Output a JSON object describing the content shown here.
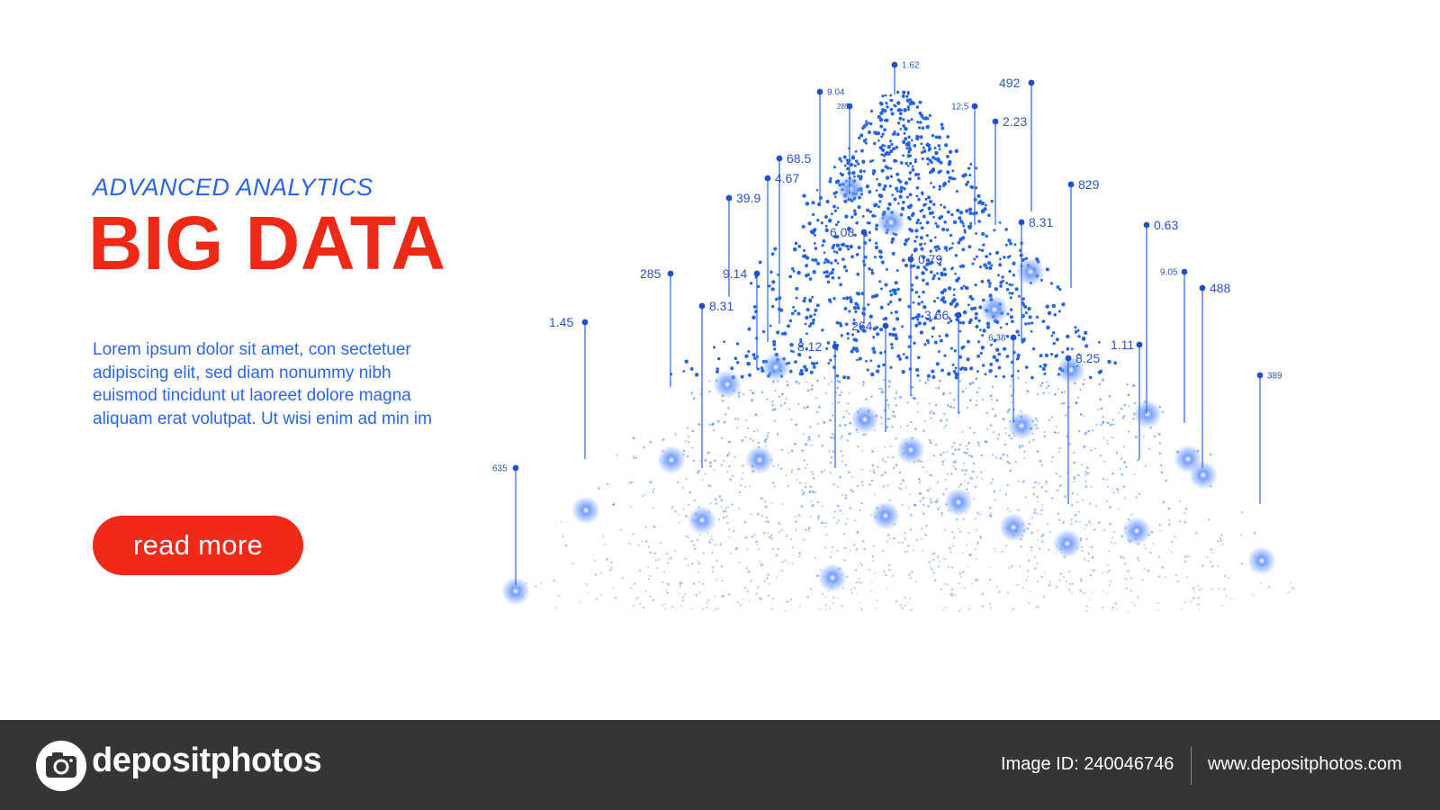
{
  "hero": {
    "subtitle": "ADVANCED ANALYTICS",
    "title": "BIG DATA",
    "body_lines": [
      "Lorem ipsum dolor sit amet, con sectetuer",
      "adipiscing elit, sed diam nonummy nibh",
      "euismod tincidunt  ut laoreet dolore magna",
      "aliquam erat volutpat. Ut wisi enim ad min  im"
    ],
    "cta_label": "read more",
    "accent_color": "#ee2a17",
    "text_color": "#2d66e6"
  },
  "visual": {
    "particle_color": "#1d5fe0",
    "glow_color": "#5b8cff",
    "labels": [
      "1.62",
      "9.04",
      "285",
      "12.5",
      "492",
      "2.23",
      "68.5",
      "4.67",
      "39.9",
      "829",
      "8.31",
      "0.63",
      "6.08",
      "285",
      "9.14",
      "0.79",
      "9.05",
      "488",
      "8.31",
      "3.66",
      "264",
      "1.45",
      "6.38",
      "8.12",
      "1.11",
      "8.25",
      "389",
      "635"
    ]
  },
  "footer": {
    "brand": "depositphotos",
    "logo_icon": "camera-icon",
    "image_id": "Image ID: 240046746",
    "website": "www.depositphotos.com"
  }
}
